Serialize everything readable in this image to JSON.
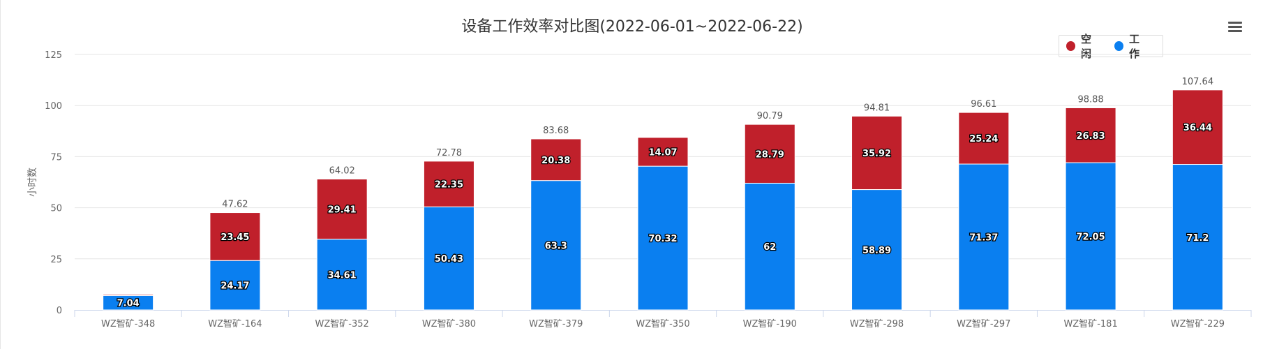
{
  "chart_data": {
    "type": "bar",
    "stacked": true,
    "title": "设备工作效率对比图(2022-06-01~2022-06-22)",
    "ylabel": "小时数",
    "xlabel": "",
    "ylim": [
      0,
      125
    ],
    "yticks": [
      0,
      25,
      50,
      75,
      100,
      125
    ],
    "grid": true,
    "legend_position": "top-right",
    "categories": [
      "WZ智矿-348",
      "WZ智矿-164",
      "WZ智矿-352",
      "WZ智矿-380",
      "WZ智矿-379",
      "WZ智矿-350",
      "WZ智矿-190",
      "WZ智矿-298",
      "WZ智矿-297",
      "WZ智矿-181",
      "WZ智矿-229"
    ],
    "series": [
      {
        "name": "工作",
        "color": "#0a7ff0",
        "values": [
          7.04,
          24.17,
          34.61,
          50.43,
          63.3,
          70.32,
          62,
          58.89,
          71.37,
          72.05,
          71.2
        ]
      },
      {
        "name": "空闲",
        "color": "#c0202b",
        "values": [
          0.5,
          23.45,
          29.41,
          22.35,
          20.38,
          14.07,
          28.79,
          35.92,
          25.24,
          26.83,
          36.44
        ]
      }
    ],
    "totals": [
      "",
      "47.62",
      "64.02",
      "72.78",
      "83.68",
      "",
      "90.79",
      "94.81",
      "96.61",
      "98.88",
      "107.64"
    ],
    "work_labels": [
      "7.04",
      "24.17",
      "34.61",
      "50.43",
      "63.3",
      "70.32",
      "62",
      "58.89",
      "71.37",
      "72.05",
      "71.2"
    ],
    "idle_labels": [
      "",
      "23.45",
      "29.41",
      "22.35",
      "20.38",
      "14.07",
      "28.79",
      "35.92",
      "25.24",
      "26.83",
      "36.44"
    ]
  },
  "legend": {
    "items": [
      {
        "label": "空闲",
        "color": "#c0202b"
      },
      {
        "label": "工作",
        "color": "#0a7ff0"
      }
    ]
  },
  "toolbar": {
    "menu_icon": "hamburger-menu-icon"
  }
}
